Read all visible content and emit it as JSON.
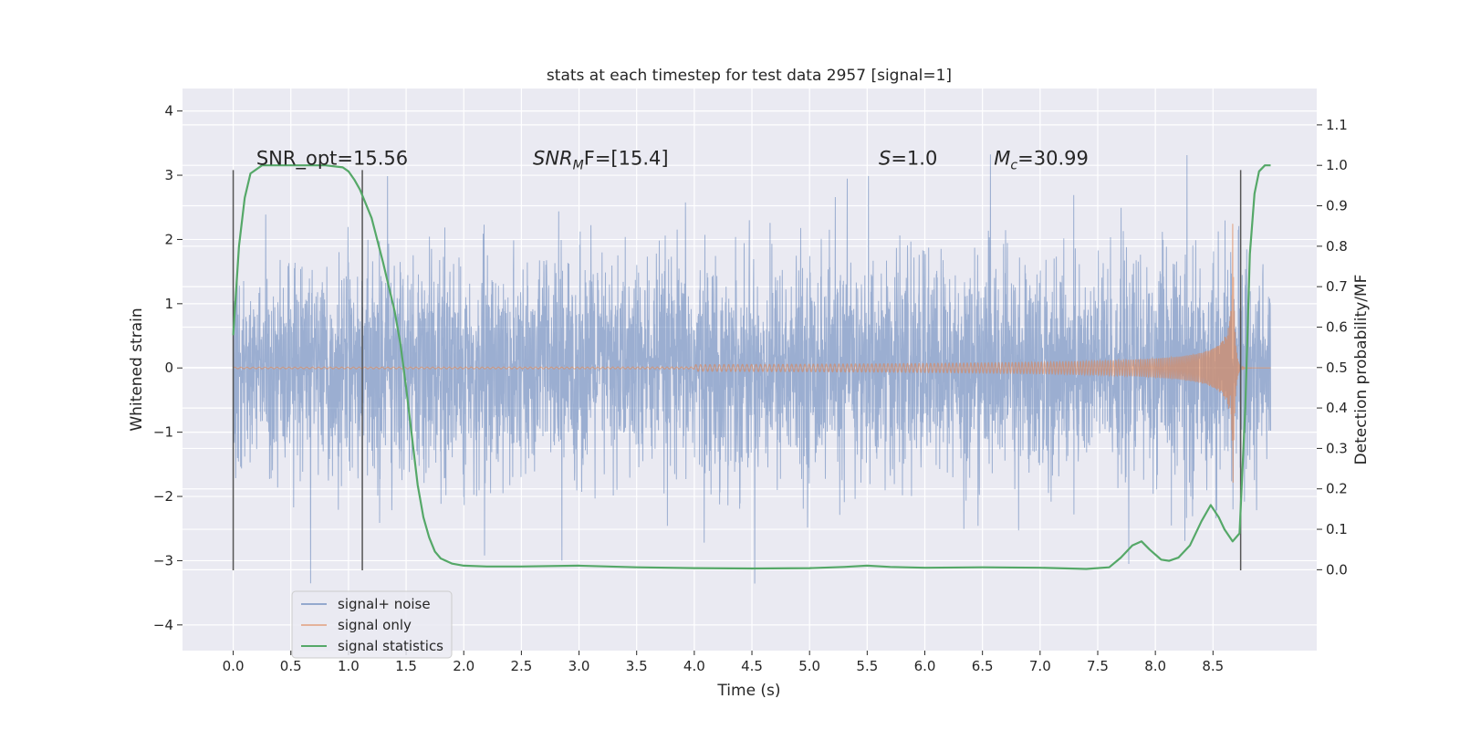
{
  "chart_data": {
    "type": "line",
    "title": "stats at each timestep for test data 2957 [signal=1]",
    "xlabel": "Time (s)",
    "ylabel_left": "Whitened strain",
    "ylabel_right": "Detection probability/MF",
    "xlim": [
      -0.44,
      9.4
    ],
    "ylim_left": [
      -4.4,
      4.35
    ],
    "ylim_right": [
      -0.2,
      1.19
    ],
    "x_ticks": [
      0.0,
      0.5,
      1.0,
      1.5,
      2.0,
      2.5,
      3.0,
      3.5,
      4.0,
      4.5,
      5.0,
      5.5,
      6.0,
      6.5,
      7.0,
      7.5,
      8.0,
      8.5
    ],
    "x_tick_labels": [
      "0.0",
      "0.5",
      "1.0",
      "1.5",
      "2.0",
      "2.5",
      "3.0",
      "3.5",
      "4.0",
      "4.5",
      "5.0",
      "5.5",
      "6.0",
      "6.5",
      "7.0",
      "7.5",
      "8.0",
      "8.5"
    ],
    "left_ticks": [
      4,
      3,
      2,
      1,
      0,
      -1,
      -2,
      -3,
      -4
    ],
    "left_tick_labels": [
      "4",
      "3",
      "2",
      "1",
      "0",
      "−1",
      "−2",
      "−3",
      "−4"
    ],
    "right_ticks": [
      1.1,
      1.0,
      0.9,
      0.8,
      0.7,
      0.6,
      0.5,
      0.4,
      0.3,
      0.2,
      0.1,
      0.0
    ],
    "right_tick_labels": [
      "1.1",
      "1.0",
      "0.9",
      "0.8",
      "0.7",
      "0.6",
      "0.5",
      "0.4",
      "0.3",
      "0.2",
      "0.1",
      "0.0"
    ],
    "series": [
      {
        "name": "signal+ noise",
        "color": "#4c72b0",
        "axis": "left",
        "description": "whitened strain noise plus signal, sampled from 0 to 9 s, amplitude ~±3"
      },
      {
        "name": "signal only",
        "color": "#dd8452",
        "axis": "left",
        "description": "chirp waveform growing toward merger near 8.67 s"
      },
      {
        "name": "signal statistics",
        "color": "#55a868",
        "axis": "right",
        "points": [
          [
            0.0,
            0.58
          ],
          [
            0.05,
            0.8
          ],
          [
            0.1,
            0.92
          ],
          [
            0.15,
            0.98
          ],
          [
            0.25,
            1.0
          ],
          [
            0.5,
            1.0
          ],
          [
            0.8,
            1.0
          ],
          [
            0.95,
            0.995
          ],
          [
            1.0,
            0.985
          ],
          [
            1.05,
            0.965
          ],
          [
            1.1,
            0.94
          ],
          [
            1.2,
            0.87
          ],
          [
            1.3,
            0.76
          ],
          [
            1.4,
            0.64
          ],
          [
            1.45,
            0.56
          ],
          [
            1.5,
            0.45
          ],
          [
            1.55,
            0.33
          ],
          [
            1.6,
            0.21
          ],
          [
            1.65,
            0.13
          ],
          [
            1.7,
            0.08
          ],
          [
            1.75,
            0.045
          ],
          [
            1.8,
            0.028
          ],
          [
            1.9,
            0.015
          ],
          [
            2.0,
            0.01
          ],
          [
            2.2,
            0.008
          ],
          [
            2.5,
            0.008
          ],
          [
            3.0,
            0.01
          ],
          [
            3.5,
            0.006
          ],
          [
            4.0,
            0.004
          ],
          [
            4.5,
            0.003
          ],
          [
            5.0,
            0.004
          ],
          [
            5.3,
            0.007
          ],
          [
            5.5,
            0.01
          ],
          [
            5.7,
            0.007
          ],
          [
            6.0,
            0.005
          ],
          [
            6.5,
            0.006
          ],
          [
            7.0,
            0.005
          ],
          [
            7.4,
            0.002
          ],
          [
            7.6,
            0.006
          ],
          [
            7.7,
            0.03
          ],
          [
            7.8,
            0.06
          ],
          [
            7.88,
            0.07
          ],
          [
            7.95,
            0.05
          ],
          [
            8.05,
            0.025
          ],
          [
            8.12,
            0.022
          ],
          [
            8.2,
            0.03
          ],
          [
            8.3,
            0.06
          ],
          [
            8.4,
            0.12
          ],
          [
            8.48,
            0.16
          ],
          [
            8.55,
            0.13
          ],
          [
            8.6,
            0.1
          ],
          [
            8.67,
            0.07
          ],
          [
            8.73,
            0.09
          ],
          [
            8.78,
            0.4
          ],
          [
            8.82,
            0.78
          ],
          [
            8.86,
            0.93
          ],
          [
            8.9,
            0.985
          ],
          [
            8.95,
            1.0
          ],
          [
            9.0,
            1.0
          ]
        ]
      }
    ],
    "vlines": [
      0.0,
      1.12,
      8.74
    ],
    "vline_range_left": [
      -3.15,
      3.08
    ],
    "annotations": [
      {
        "x": 0.2,
        "y": 3.08,
        "text_plain": "SNR_opt=15.56",
        "kind": "plain"
      },
      {
        "x": 2.6,
        "y": 3.08,
        "text_main": "SNR",
        "text_sub": "M",
        "text_tail": "F=[15.4]",
        "kind": "math"
      },
      {
        "x": 5.6,
        "y": 3.08,
        "text_main": "S",
        "text_tail": "=1.0",
        "kind": "math_nosub"
      },
      {
        "x": 6.6,
        "y": 3.08,
        "text_main": "M",
        "text_sub": "c",
        "text_tail": "=30.99",
        "kind": "math"
      }
    ],
    "legend_position": "lower-left",
    "grid": true
  }
}
